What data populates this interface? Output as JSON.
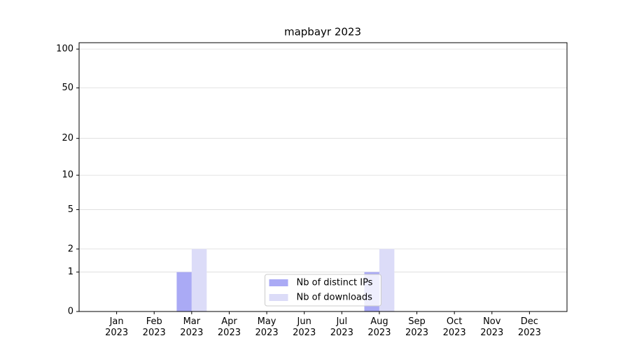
{
  "chart_data": {
    "type": "bar",
    "title": "mapbayr 2023",
    "categories": [
      "Jan 2023",
      "Feb 2023",
      "Mar 2023",
      "Apr 2023",
      "May 2023",
      "Jun 2023",
      "Jul 2023",
      "Aug 2023",
      "Sep 2023",
      "Oct 2023",
      "Nov 2023",
      "Dec 2023"
    ],
    "series": [
      {
        "name": "Nb of distinct IPs",
        "color": "#aaaaf5",
        "values": [
          0,
          0,
          1,
          0,
          0,
          0,
          0,
          1,
          0,
          0,
          0,
          0
        ]
      },
      {
        "name": "Nb of downloads",
        "color": "#dcdcf8",
        "values": [
          0,
          0,
          2,
          0,
          0,
          0,
          0,
          2,
          0,
          0,
          0,
          0
        ]
      }
    ],
    "yscale": "log1p",
    "ylim": [
      0,
      112
    ],
    "yticks": [
      0,
      1,
      2,
      5,
      10,
      20,
      50,
      100
    ],
    "grid": true,
    "legend": "lower center"
  }
}
